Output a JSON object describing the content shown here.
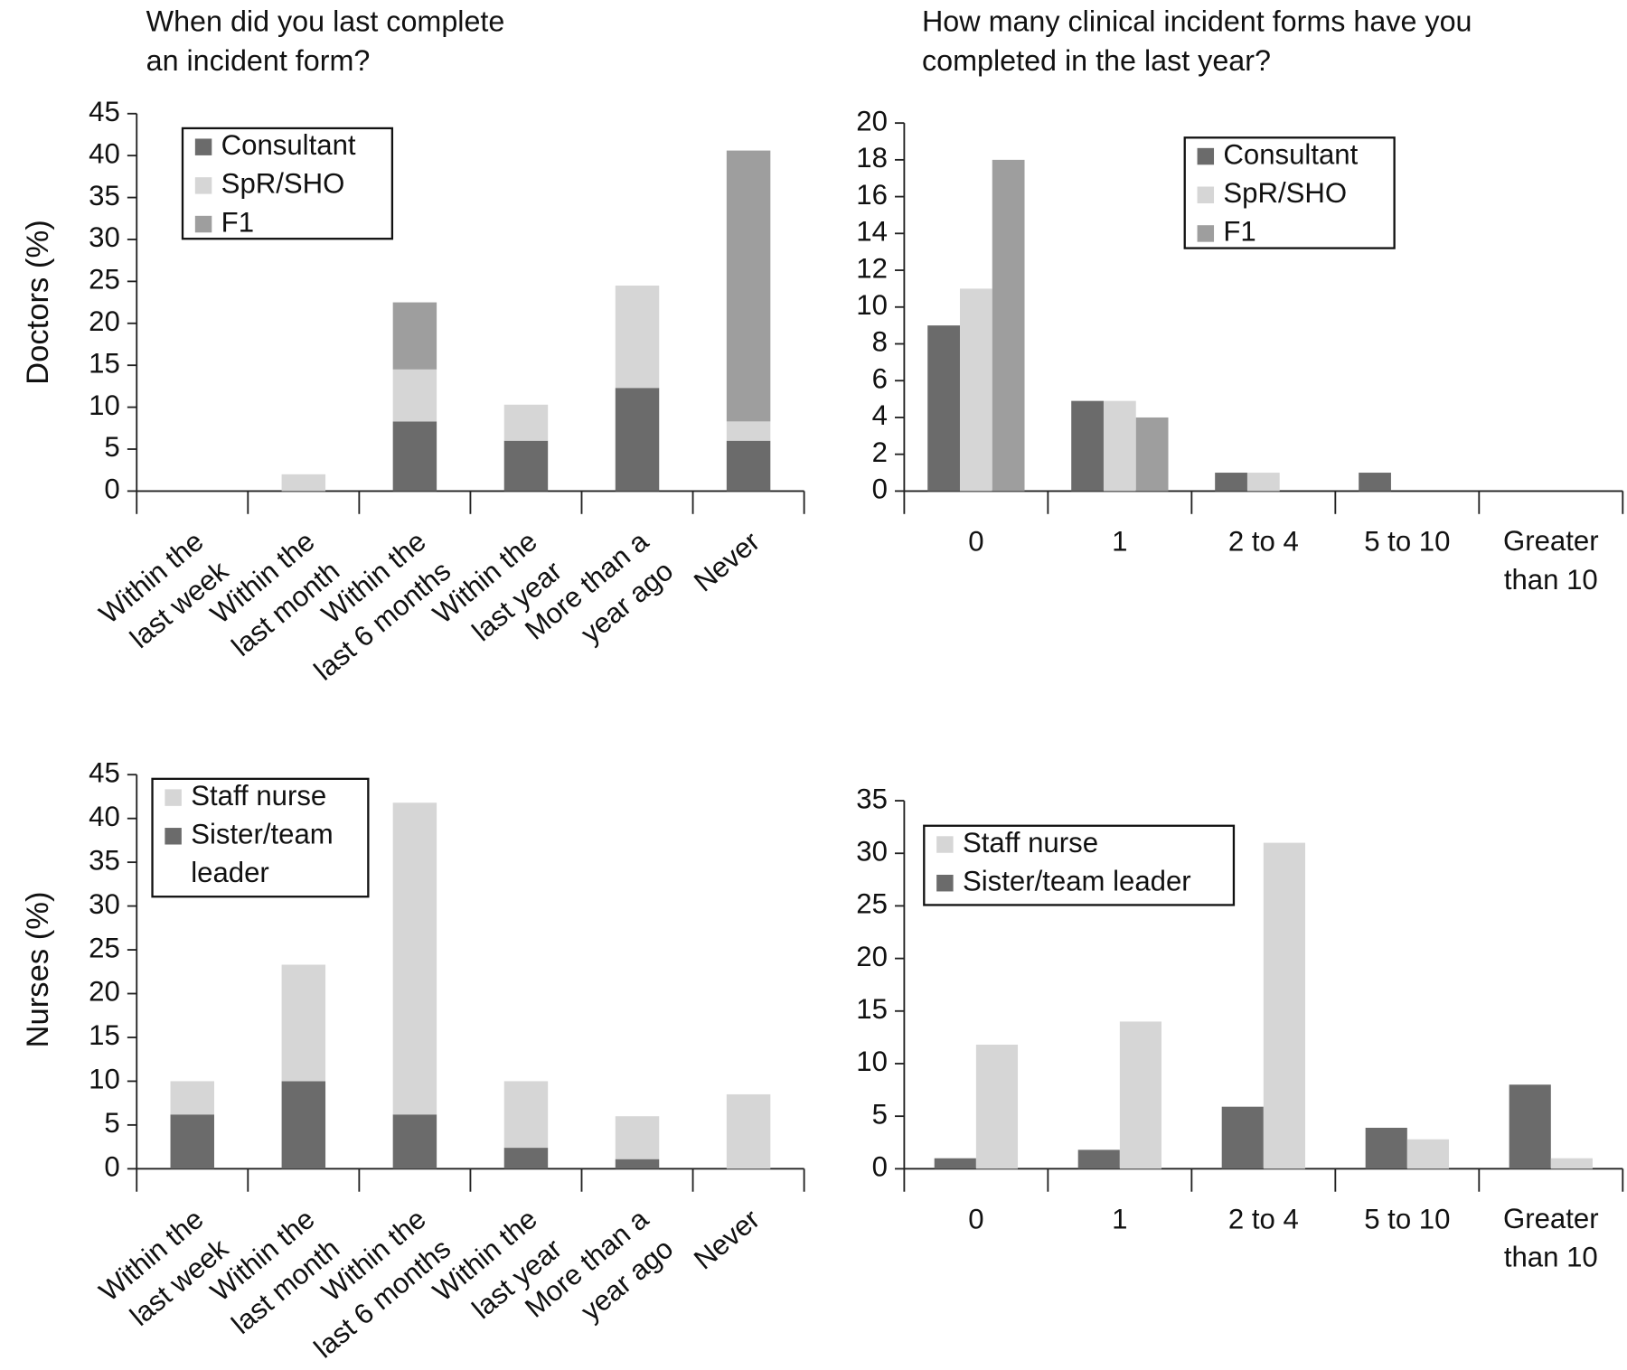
{
  "chart_data": [
    {
      "type": "bar",
      "stacked": true,
      "title": "When did you last complete\nan incident form?",
      "y_label": "Doctors (%)",
      "categories": [
        "Within the\nlast week",
        "Within the\nlast month",
        "Within the\nlast 6 months",
        "Within the\nlast year",
        "More than a\nyear ago",
        "Never"
      ],
      "series": [
        {
          "name": "Consultant",
          "color": "#6b6b6b",
          "values": [
            0,
            0,
            8.3,
            6,
            12.3,
            6
          ]
        },
        {
          "name": "SpR/SHO",
          "color": "#d6d6d6",
          "values": [
            0,
            2,
            6.2,
            4.3,
            12.2,
            2.3
          ]
        },
        {
          "name": "F1",
          "color": "#9e9e9e",
          "values": [
            0,
            0,
            8,
            0,
            0,
            32.3
          ]
        }
      ],
      "ylim": [
        0,
        45
      ],
      "yticks": [
        0,
        5,
        10,
        15,
        20,
        25,
        30,
        35,
        40,
        45
      ]
    },
    {
      "type": "bar",
      "stacked": false,
      "title": "How many clinical incident forms have you\ncompleted in the last year?",
      "categories": [
        "0",
        "1",
        "2 to 4",
        "5 to 10",
        "Greater\nthan 10"
      ],
      "series": [
        {
          "name": "Consultant",
          "color": "#6b6b6b",
          "values": [
            9,
            4.9,
            1,
            1,
            0
          ]
        },
        {
          "name": "SpR/SHO",
          "color": "#d6d6d6",
          "values": [
            11,
            4.9,
            1,
            0,
            0
          ]
        },
        {
          "name": "F1",
          "color": "#9e9e9e",
          "values": [
            18,
            4,
            0,
            0,
            0
          ]
        }
      ],
      "ylim": [
        0,
        20
      ],
      "yticks": [
        0,
        2,
        4,
        6,
        8,
        10,
        12,
        14,
        16,
        18,
        20
      ]
    },
    {
      "type": "bar",
      "stacked": true,
      "series_order": "reversed",
      "y_label": "Nurses (%)",
      "categories": [
        "Within the\nlast week",
        "Within the\nlast month",
        "Within the\nlast 6 months",
        "Within the\nlast year",
        "More than a\nyear ago",
        "Never"
      ],
      "series": [
        {
          "name": "Staff nurse",
          "color": "#d6d6d6",
          "values": [
            3.8,
            13.3,
            35.6,
            7.6,
            4.9,
            8.5
          ]
        },
        {
          "name": "Sister/team\nleader",
          "color": "#6b6b6b",
          "values": [
            6.2,
            10,
            6.2,
            2.4,
            1.1,
            0
          ]
        }
      ],
      "ylim": [
        0,
        45
      ],
      "yticks": [
        0,
        5,
        10,
        15,
        20,
        25,
        30,
        35,
        40,
        45
      ]
    },
    {
      "type": "bar",
      "stacked": false,
      "series_order": "reversed",
      "categories": [
        "0",
        "1",
        "2 to 4",
        "5 to 10",
        "Greater\nthan 10"
      ],
      "series": [
        {
          "name": "Staff nurse",
          "color": "#d6d6d6",
          "values": [
            11.8,
            14,
            31,
            2.8,
            1
          ]
        },
        {
          "name": "Sister/team leader",
          "color": "#6b6b6b",
          "values": [
            1,
            1.8,
            5.9,
            3.9,
            8
          ]
        }
      ],
      "ylim": [
        0,
        35
      ],
      "yticks": [
        0,
        5,
        10,
        15,
        20,
        25,
        30,
        35
      ]
    }
  ]
}
